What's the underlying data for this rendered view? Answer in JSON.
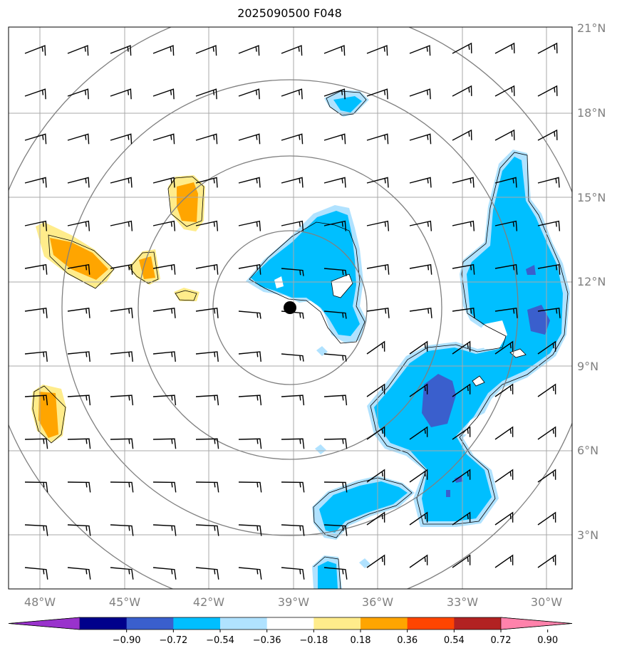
{
  "title": "2025090500 F048",
  "lon_labels": [
    "48°W",
    "45°W",
    "42°W",
    "39°W",
    "36°W",
    "33°W",
    "30°W"
  ],
  "lat_labels": [
    "21°N",
    "18°N",
    "15°N",
    "12°N",
    "9°N",
    "6°N",
    "3°N"
  ],
  "colorbar": {
    "ticks": [
      "−0.90",
      "−0.72",
      "−0.54",
      "−0.36",
      "−0.18",
      "0.18",
      "0.36",
      "0.54",
      "0.72",
      "0.90"
    ],
    "colors": [
      "#9932CC",
      "#00008B",
      "#3A5FCD",
      "#00BFFF",
      "#B0E2FF",
      "#FFFFFF",
      "#FFEC8B",
      "#FFA500",
      "#FF4500",
      "#B22222",
      "#FF82AB"
    ]
  },
  "center": {
    "lon": -39.0,
    "lat": 11.0
  },
  "range_rings": 4,
  "extent": {
    "lon": [
      -49.0,
      -29.0
    ],
    "lat": [
      1.0,
      21.0
    ]
  }
}
